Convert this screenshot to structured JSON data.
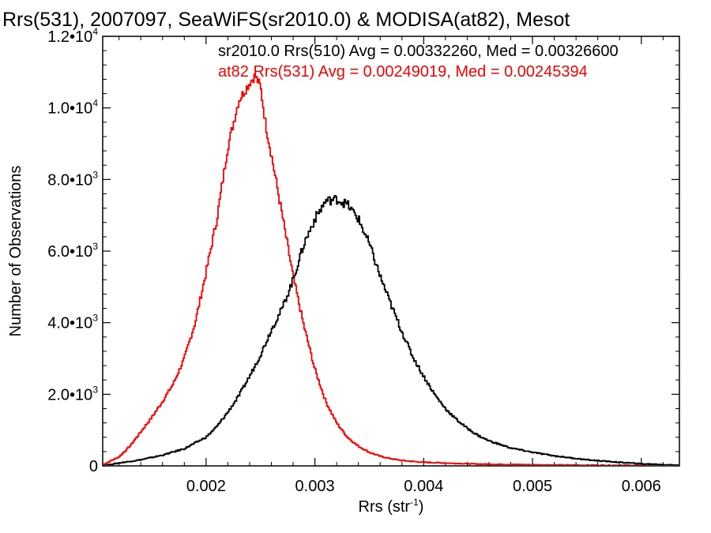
{
  "chart_data": {
    "type": "line",
    "title": "Rrs(531), 2007097, SeaWiFS(sr2010.0) & MODISA(at82), Mesot",
    "xlabel": "Rrs (str",
    "xlabel_sup": "-1",
    "xlabel_end": ")",
    "ylabel": "Number of Observations",
    "xlim": [
      0.00105,
      0.00635
    ],
    "ylim": [
      0,
      12000
    ],
    "x_ticks": [
      {
        "value": 0.002,
        "label": "0.002"
      },
      {
        "value": 0.003,
        "label": "0.003"
      },
      {
        "value": 0.004,
        "label": "0.004"
      },
      {
        "value": 0.005,
        "label": "0.005"
      },
      {
        "value": 0.006,
        "label": "0.006"
      }
    ],
    "y_ticks": [
      {
        "value": 0,
        "label": "0",
        "exp": ""
      },
      {
        "value": 2000,
        "label": "2.0•10",
        "exp": "3"
      },
      {
        "value": 4000,
        "label": "4.0•10",
        "exp": "3"
      },
      {
        "value": 6000,
        "label": "6.0•10",
        "exp": "3"
      },
      {
        "value": 8000,
        "label": "8.0•10",
        "exp": "3"
      },
      {
        "value": 10000,
        "label": "1.0•10",
        "exp": "4"
      },
      {
        "value": 12000,
        "label": "1.2•10",
        "exp": "4"
      }
    ],
    "annotations": [
      {
        "text": "sr2010.0 Rrs(510) Avg = 0.00332260, Med = 0.00326600",
        "color": "#000000"
      },
      {
        "text": "at82 Rrs(531) Avg = 0.00249019, Med = 0.00245394",
        "color": "#ff0000"
      }
    ],
    "series": [
      {
        "color": "#ff0000",
        "x": [
          0.00105,
          0.0012,
          0.0013,
          0.0014,
          0.0015,
          0.0016,
          0.0017,
          0.0018,
          0.0019,
          0.002,
          0.0021,
          0.0022,
          0.0023,
          0.0024,
          0.00245,
          0.0025,
          0.00255,
          0.0026,
          0.0027,
          0.0028,
          0.0029,
          0.003,
          0.0031,
          0.0032,
          0.0033,
          0.0034,
          0.0035,
          0.0036,
          0.0037,
          0.0038,
          0.004,
          0.0042,
          0.0045,
          0.005,
          0.0055,
          0.006,
          0.00635
        ],
        "y": [
          30,
          250,
          550,
          950,
          1350,
          1800,
          2300,
          3000,
          4000,
          5400,
          6900,
          8900,
          10200,
          10700,
          10900,
          10600,
          9500,
          8700,
          7000,
          5300,
          3900,
          2700,
          1800,
          1200,
          800,
          550,
          380,
          270,
          200,
          150,
          100,
          80,
          50,
          30,
          20,
          15,
          10
        ]
      },
      {
        "color": "#000000",
        "x": [
          0.00105,
          0.0012,
          0.0014,
          0.0016,
          0.0018,
          0.002,
          0.0021,
          0.0022,
          0.0023,
          0.0024,
          0.0025,
          0.0026,
          0.0027,
          0.0028,
          0.0029,
          0.003,
          0.0031,
          0.0032,
          0.0033,
          0.0034,
          0.0035,
          0.0036,
          0.0037,
          0.0038,
          0.0039,
          0.004,
          0.0041,
          0.0042,
          0.0043,
          0.0044,
          0.0045,
          0.0046,
          0.0048,
          0.005,
          0.0052,
          0.0055,
          0.0058,
          0.006,
          0.00635
        ],
        "y": [
          0,
          80,
          170,
          300,
          480,
          800,
          1100,
          1500,
          1950,
          2500,
          3100,
          3800,
          4400,
          5200,
          6200,
          6900,
          7400,
          7450,
          7300,
          6900,
          6200,
          5300,
          4500,
          3750,
          3050,
          2500,
          2000,
          1600,
          1300,
          1050,
          850,
          700,
          500,
          380,
          280,
          170,
          100,
          60,
          20
        ]
      }
    ]
  }
}
